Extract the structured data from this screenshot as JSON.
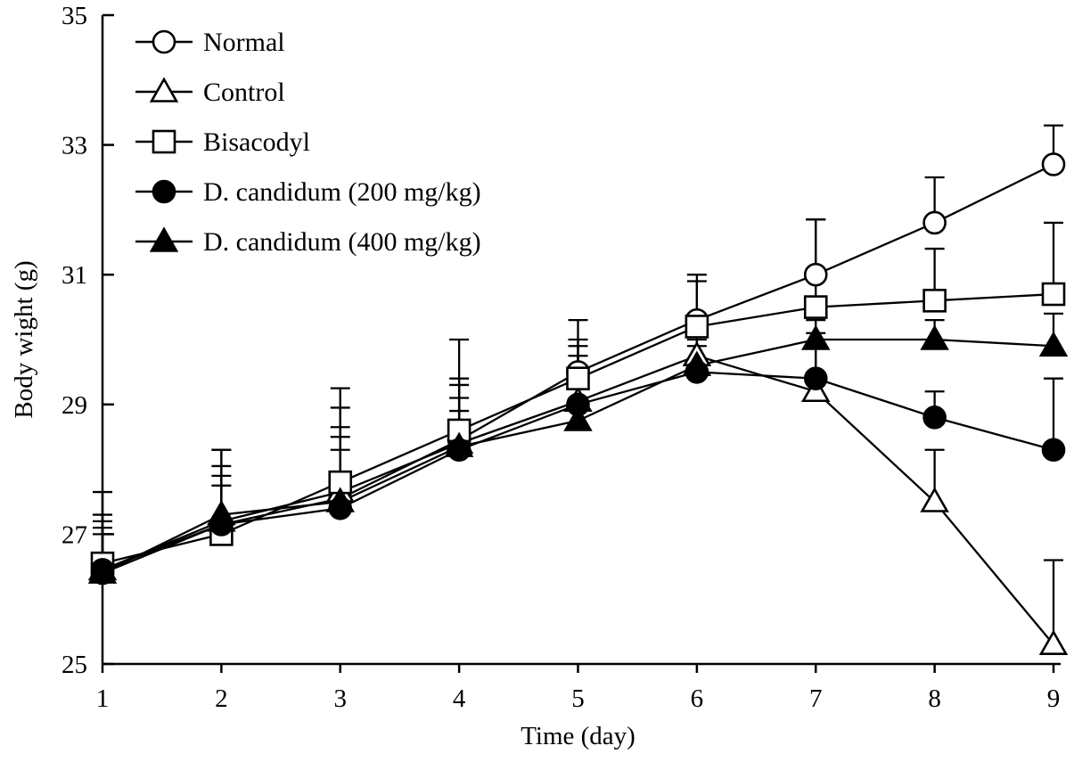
{
  "chart_data": {
    "type": "line",
    "title": "",
    "xlabel": "Time (day)",
    "ylabel": "Body wight (g)",
    "x": [
      1,
      2,
      3,
      4,
      5,
      6,
      7,
      8,
      9
    ],
    "xlim": [
      1,
      9
    ],
    "ylim": [
      25,
      35
    ],
    "yticks": [
      25,
      27,
      29,
      31,
      33,
      35
    ],
    "grid": false,
    "legend_position": "top-left",
    "colors": {
      "stroke": "#000000",
      "background": "#ffffff",
      "open_marker_fill": "#ffffff",
      "solid_marker_fill": "#000000"
    },
    "series": [
      {
        "name": "Normal",
        "marker": "circle",
        "fill": "open",
        "values": [
          26.4,
          27.15,
          27.55,
          28.45,
          29.5,
          30.3,
          31.0,
          31.8,
          32.7
        ],
        "errors_up": [
          0.6,
          0.6,
          1.1,
          0.95,
          0.5,
          0.7,
          0.85,
          0.7,
          0.6
        ]
      },
      {
        "name": "Control",
        "marker": "triangle",
        "fill": "open",
        "values": [
          26.45,
          27.2,
          27.65,
          28.4,
          29.05,
          29.75,
          29.2,
          27.5,
          25.3
        ],
        "errors_up": [
          0.75,
          0.85,
          1.3,
          0.9,
          0.85,
          0.4,
          0.9,
          0.8,
          1.3
        ]
      },
      {
        "name": "Bisacodyl",
        "marker": "square",
        "fill": "open",
        "values": [
          26.55,
          27.0,
          27.8,
          28.6,
          29.4,
          30.2,
          30.5,
          30.6,
          30.7
        ],
        "errors_up": [
          1.1,
          1.3,
          1.45,
          1.4,
          0.9,
          0.7,
          1.35,
          0.8,
          1.1
        ]
      },
      {
        "name": "D. candidum (200 mg/kg)",
        "marker": "circle",
        "fill": "solid",
        "values": [
          26.45,
          27.15,
          27.4,
          28.3,
          29.0,
          29.5,
          29.4,
          28.8,
          28.3
        ],
        "errors_up": [
          0.65,
          0.75,
          0.9,
          0.6,
          0.6,
          0.4,
          0.5,
          0.4,
          1.1
        ]
      },
      {
        "name": "D. candidum (400 mg/kg)",
        "marker": "triangle",
        "fill": "solid",
        "values": [
          26.4,
          27.3,
          27.5,
          28.35,
          28.75,
          29.6,
          30.0,
          30.0,
          29.9
        ],
        "errors_up": [
          0.9,
          1.0,
          1.0,
          0.75,
          1.0,
          0.4,
          0.3,
          0.3,
          0.5
        ]
      }
    ]
  }
}
